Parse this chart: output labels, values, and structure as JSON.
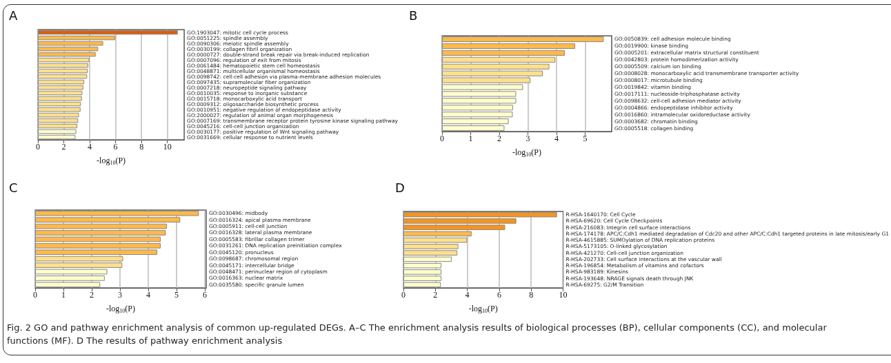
{
  "chart_data": [
    {
      "type": "bar",
      "orientation": "horizontal",
      "title": "A",
      "xlabel": "-log$_{10}$(P)",
      "grid": "x",
      "xlim": [
        0,
        11.3
      ],
      "xticks": [
        0,
        2,
        4,
        6,
        8,
        10
      ],
      "categories": [
        "GO:1903047: mitotic cell cycle process",
        "GO:0051225: spindle assembly",
        "GO:0090306: meiotic spindle assembly",
        "GO:0030199: collagen fibril organization",
        "GO:0000727: double-strand break repair via break-induced replication",
        "GO:0007096: regulation of exit from mitosis",
        "GO:0061484: hematopoietic stem cell homeostasis",
        "GO:0048871: multicellular organismal homeostasis",
        "GO:0098742: cell-cell adhesion via plasma-membrane adhesion molecules",
        "GO:0097435: supramolecular fiber organization",
        "GO:0007218: neuropeptide signaling pathway",
        "GO:0010035: response to inorganic substance",
        "GO:0015718: monocarboxylic acid transport",
        "GO:0009312: oligosaccharide biosynthetic process",
        "GO:0010951: negative regulation of endopeptidase activity",
        "GO:2000027: regulation of animal organ morphogenesis",
        "GO:0007169: transmembrane receptor protein tyrosine kinase signaling pathway",
        "GO:0045216: cell-cell junction organization",
        "GO:0030177: positive regulation of Wnt signaling pathway",
        "GO:0031669: cellular response to nutrient levels"
      ],
      "values": [
        10.8,
        5.97,
        5.04,
        4.65,
        4.46,
        3.97,
        3.89,
        3.85,
        3.8,
        3.58,
        3.51,
        3.43,
        3.4,
        3.32,
        3.29,
        3.17,
        3.11,
        3.04,
        2.96,
        2.9
      ],
      "colors": [
        "#d95f0e",
        "#fdb94b",
        "#fdb94b",
        "#fdb94b",
        "#fdb94b",
        "#fee08b",
        "#fee08b",
        "#fee08b",
        "#fee08b",
        "#fee08b",
        "#fee08b",
        "#fee08b",
        "#fee08b",
        "#fee08b",
        "#fee08b",
        "#fee08b",
        "#fee08b",
        "#fee08b",
        "#ffffcc",
        "#ffffcc"
      ]
    },
    {
      "type": "bar",
      "orientation": "horizontal",
      "title": "B",
      "xlabel": "-log$_{10}$(P)",
      "grid": "x",
      "xlim": [
        0,
        5.93
      ],
      "xticks": [
        0,
        1,
        2,
        3,
        4,
        5
      ],
      "categories": [
        "GO:0050839: cell adhesion molecule binding",
        "GO:0019900: kinase binding",
        "GO:0005201: extracellular matrix structural constituent",
        "GO:0042803: protein homodimerization activity",
        "GO:0005509: calcium ion binding",
        "GO:0008028: monocarboxylic acid transmembrane transporter activity",
        "GO:0008017: microtubule binding",
        "GO:0019842: vitamin binding",
        "GO:0017111: nucleoside-triphosphatase activity",
        "GO:0098632: cell-cell adhesion mediator activity",
        "GO:0004866: endopeptidase inhibitor activity",
        "GO:0016860: intramolecular oxidoreductase activity",
        "GO:0003682: chromatin binding",
        "GO:0005518: collagen binding"
      ],
      "values": [
        5.65,
        4.65,
        4.29,
        3.96,
        3.75,
        3.52,
        3.09,
        2.83,
        2.59,
        2.59,
        2.48,
        2.47,
        2.33,
        2.18
      ],
      "colors": [
        "#fdb94b",
        "#fdb94b",
        "#fdb94b",
        "#fee08b",
        "#fee08b",
        "#fee08b",
        "#fee08b",
        "#ffffcc",
        "#ffffcc",
        "#ffffcc",
        "#ffffcc",
        "#ffffcc",
        "#ffffcc",
        "#ffffcc"
      ]
    },
    {
      "type": "bar",
      "orientation": "horizontal",
      "title": "C",
      "xlabel": "-log$_{10}$(P)",
      "grid": "x",
      "xlim": [
        0,
        6.05
      ],
      "xticks": [
        0,
        1,
        2,
        3,
        4,
        5,
        6
      ],
      "categories": [
        "GO:0030496: midbody",
        "GO:0016324: apical plasma membrane",
        "GO:0005911: cell-cell junction",
        "GO:0016328: lateral plasma membrane",
        "GO:0005583: fibrillar collagen trimer",
        "GO:0031261: DNA replication preinitiation complex",
        "GO:0045120: pronucleus",
        "GO:0098687: chromosomal region",
        "GO:0045171: intercellular bridge",
        "GO:0048471: perinuclear region of cytoplasm",
        "GO:0016363: nuclear matrix",
        "GO:0035580: specific granule lumen"
      ],
      "values": [
        5.79,
        5.13,
        4.66,
        4.62,
        4.44,
        4.44,
        4.32,
        3.11,
        3.08,
        2.55,
        2.46,
        2.3
      ],
      "colors": [
        "#fdb94b",
        "#fdb94b",
        "#fdb94b",
        "#fdb94b",
        "#fdb94b",
        "#fdb94b",
        "#fdb94b",
        "#fee08b",
        "#fee08b",
        "#ffffcc",
        "#ffffcc",
        "#ffffcc"
      ]
    },
    {
      "type": "bar",
      "orientation": "horizontal",
      "title": "D",
      "xlabel": "-log$_{10}$(P)",
      "grid": "x",
      "xlim": [
        0,
        10
      ],
      "xticks": [
        0,
        2,
        4,
        6,
        8,
        10
      ],
      "categories": [
        "R-HSA-1640170: Cell Cycle",
        "R-HSA-69620: Cell Cycle Checkpoints",
        "R-HSA-216083: Integrin cell surface interactions",
        "R-HSA-174178: APC/C:Cdh1 mediated degradation of Cdc20 and other APC/C:Cdh1 targeted proteins in late mitosis/early G1",
        "R-HSA-4615885: SUMOylation of DNA replication proteins",
        "R-HSA-5173105: O-linked glycosylation",
        "R-HSA-421270: Cell-cell junction organization",
        "R-HSA-202733: Cell surface interactions at the vascular wall",
        "R-HSA-196854: Metabolism of vitamins and cofactors",
        "R-HSA-983189: Kinesins",
        "R-HSA-193648: NRAGE signals death through JNK",
        "R-HSA-69275: G2/M Transition"
      ],
      "values": [
        9.62,
        7.07,
        6.37,
        4.27,
        3.99,
        3.44,
        3.38,
        3.03,
        2.38,
        2.38,
        2.38,
        2.34
      ],
      "colors": [
        "#f7941d",
        "#f7941d",
        "#f7941d",
        "#fdb94b",
        "#fee08b",
        "#fee08b",
        "#fee08b",
        "#ffffcc",
        "#ffffcc",
        "#ffffcc",
        "#ffffcc",
        "#ffffcc"
      ],
      "annotations": [
        "Fig. 2 GO and pathway enrichment analysis of common up-regulated DEGs. A–C The enrichment analysis results of biological processes (BP), cellular components (CC), and molecular functions (MF). D The results of pathway enrichment analysis"
      ]
    }
  ]
}
